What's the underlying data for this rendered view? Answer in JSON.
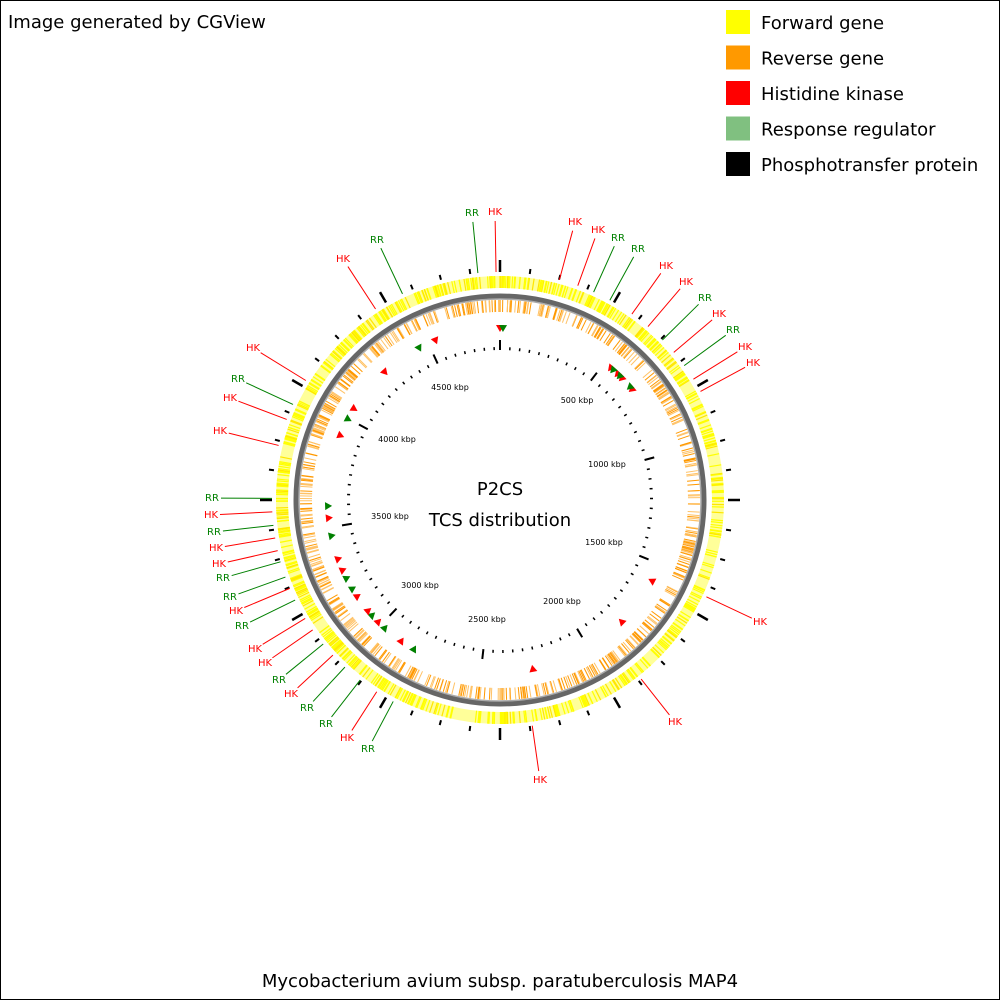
{
  "header": {
    "title": "Image generated by CGView"
  },
  "legend": {
    "items": [
      "Forward gene",
      "Reverse gene",
      "Histidine kinase",
      "Response regulator",
      "Phosphotransfer protein"
    ]
  },
  "map": {
    "title": "P2CS",
    "subtitle": "TCS distribution",
    "scale_labels": [
      "500 kbp",
      "1000 kbp",
      "1500 kbp",
      "2000 kbp",
      "2500 kbp",
      "3000 kbp",
      "3500 kbp",
      "4000 kbp",
      "4500 kbp"
    ],
    "features": [
      "RR",
      "HK",
      "HK",
      "HK",
      "RR",
      "RR",
      "HK",
      "HK",
      "RR",
      "HK",
      "RR",
      "HK",
      "HK",
      "HK",
      "HK",
      "HK",
      "RR",
      "HK",
      "RR",
      "RR",
      "HK",
      "RR",
      "HK",
      "HK",
      "RR",
      "HK",
      "RR",
      "RR",
      "HK",
      "HK",
      "RR",
      "HK",
      "RR",
      "HK",
      "HK",
      "RR",
      "HK",
      "HK",
      "RR"
    ]
  },
  "footer": {
    "caption": "Mycobacterium avium subsp. paratuberculosis MAP4"
  }
}
